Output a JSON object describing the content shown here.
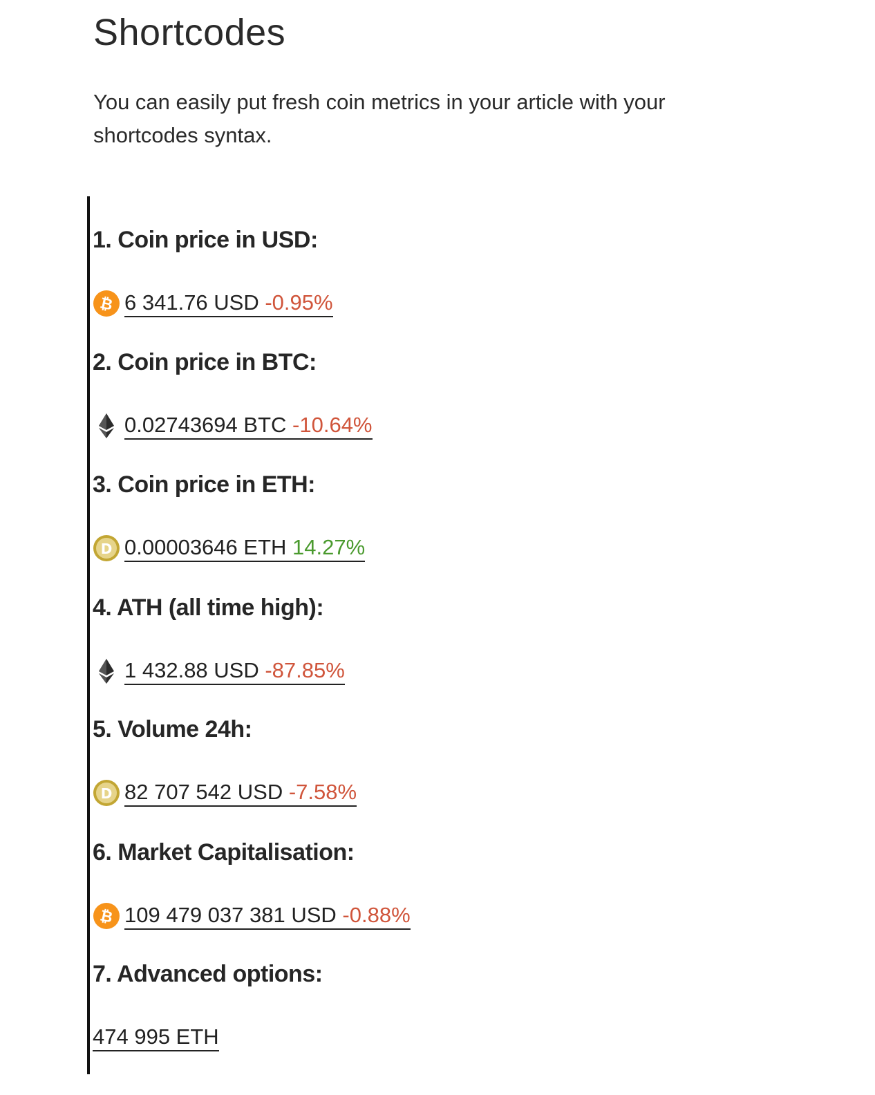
{
  "page": {
    "title": "Shortcodes",
    "intro": "You can easily put fresh coin metrics in your article with your shortcodes syntax."
  },
  "colors": {
    "negative": "#d0553b",
    "positive": "#4a9a2e",
    "bitcoin": "#f7931a",
    "dogecoin": "#c2a633",
    "ethereum": "#2b2b2b"
  },
  "sections": [
    {
      "heading": "1. Coin price in USD:",
      "icon": "bitcoin-icon",
      "value": "6 341.76 USD",
      "change": "-0.95%",
      "direction": "negative"
    },
    {
      "heading": "2. Coin price in BTC:",
      "icon": "ethereum-icon",
      "value": "0.02743694 BTC",
      "change": "-10.64%",
      "direction": "negative"
    },
    {
      "heading": "3. Coin price in ETH:",
      "icon": "dogecoin-icon",
      "value": "0.00003646 ETH",
      "change": "14.27%",
      "direction": "positive"
    },
    {
      "heading": "4. ATH (all time high):",
      "icon": "ethereum-icon",
      "value": "1 432.88 USD",
      "change": "-87.85%",
      "direction": "negative"
    },
    {
      "heading": "5. Volume 24h:",
      "icon": "dogecoin-icon",
      "value": "82 707 542 USD",
      "change": "-7.58%",
      "direction": "negative"
    },
    {
      "heading": "6. Market Capitalisation:",
      "icon": "bitcoin-icon",
      "value": "109 479 037 381 USD",
      "change": "-0.88%",
      "direction": "negative"
    },
    {
      "heading": "7. Advanced options:",
      "value": "474 995 ETH"
    }
  ]
}
